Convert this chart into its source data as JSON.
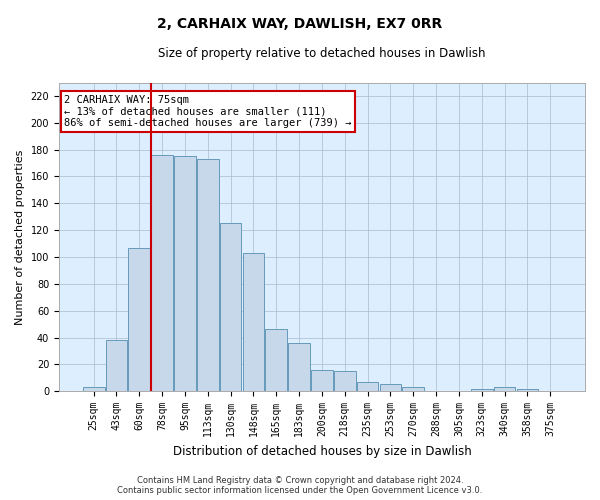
{
  "title1": "2, CARHAIX WAY, DAWLISH, EX7 0RR",
  "title2": "Size of property relative to detached houses in Dawlish",
  "xlabel": "Distribution of detached houses by size in Dawlish",
  "ylabel": "Number of detached properties",
  "categories": [
    "25sqm",
    "43sqm",
    "60sqm",
    "78sqm",
    "95sqm",
    "113sqm",
    "130sqm",
    "148sqm",
    "165sqm",
    "183sqm",
    "200sqm",
    "218sqm",
    "235sqm",
    "253sqm",
    "270sqm",
    "288sqm",
    "305sqm",
    "323sqm",
    "340sqm",
    "358sqm",
    "375sqm"
  ],
  "values": [
    3,
    38,
    107,
    176,
    175,
    173,
    125,
    103,
    46,
    36,
    16,
    15,
    7,
    5,
    3,
    0,
    0,
    2,
    3,
    2,
    0
  ],
  "bar_color": "#c8d8eb",
  "bar_edge_color": "#6699bb",
  "vline_x_index": 3,
  "vline_color": "#cc0000",
  "annotation_line1": "2 CARHAIX WAY: 75sqm",
  "annotation_line2": "← 13% of detached houses are smaller (111)",
  "annotation_line3": "86% of semi-detached houses are larger (739) →",
  "annotation_box_color": "#ffffff",
  "annotation_box_edge": "#cc0000",
  "ylim": [
    0,
    230
  ],
  "yticks": [
    0,
    20,
    40,
    60,
    80,
    100,
    120,
    140,
    160,
    180,
    200,
    220
  ],
  "grid_color": "#aabbcc",
  "background_color": "#ddeeff",
  "title1_fontsize": 10,
  "title2_fontsize": 8.5,
  "ylabel_fontsize": 8,
  "xlabel_fontsize": 8.5,
  "tick_fontsize": 7,
  "footer1": "Contains HM Land Registry data © Crown copyright and database right 2024.",
  "footer2": "Contains public sector information licensed under the Open Government Licence v3.0.",
  "footer_fontsize": 6
}
